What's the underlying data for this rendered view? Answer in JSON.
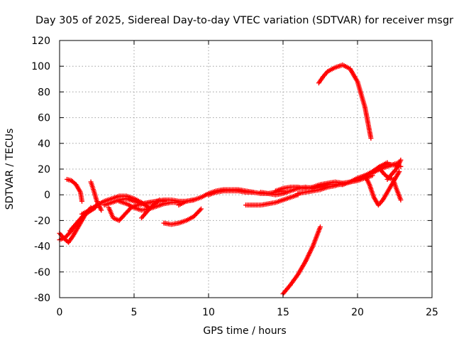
{
  "chart_data": {
    "type": "scatter",
    "title": "Day 305 of 2025, Sidereal Day-to-day VTEC variation (SDTVAR) for receiver msgr",
    "xlabel": "GPS time / hours",
    "ylabel": "SDTVAR / TECUs",
    "xlim": [
      0,
      25
    ],
    "ylim": [
      -80,
      120
    ],
    "xticks": [
      0,
      5,
      10,
      15,
      20,
      25
    ],
    "yticks": [
      -80,
      -60,
      -40,
      -20,
      0,
      20,
      40,
      60,
      80,
      100,
      120
    ],
    "grid": true,
    "marker": "plus",
    "color": "#ff0000",
    "series": [
      {
        "name": "s1",
        "x": [
          0.0,
          0.3,
          0.6,
          0.9,
          1.2,
          1.5,
          1.8,
          2.1
        ],
        "y": [
          -30,
          -34,
          -37,
          -32,
          -26,
          -20,
          -14,
          -10
        ]
      },
      {
        "name": "s2",
        "x": [
          0.0,
          0.4,
          0.8,
          1.2,
          1.6
        ],
        "y": [
          -35,
          -33,
          -28,
          -22,
          -16
        ]
      },
      {
        "name": "s3",
        "x": [
          0.5,
          0.8,
          1.1,
          1.4,
          1.5
        ],
        "y": [
          12,
          11,
          8,
          2,
          -5
        ]
      },
      {
        "name": "s4",
        "x": [
          0.7,
          1.0,
          1.3,
          1.6,
          2.0,
          2.4
        ],
        "y": [
          -28,
          -24,
          -20,
          -16,
          -13,
          -10
        ]
      },
      {
        "name": "s5",
        "x": [
          2.1,
          2.3,
          2.5,
          2.8
        ],
        "y": [
          10,
          3,
          -5,
          -12
        ]
      },
      {
        "name": "s6",
        "x": [
          1.5,
          2.0,
          2.5,
          3.0,
          3.5,
          4.0,
          4.5,
          5.0,
          5.5,
          6.0
        ],
        "y": [
          -15,
          -12,
          -8,
          -5,
          -3,
          -1,
          -1,
          -3,
          -6,
          -10
        ]
      },
      {
        "name": "s7",
        "x": [
          3.3,
          3.6,
          4.0,
          4.4,
          4.8,
          5.2,
          5.6,
          6.0,
          6.5,
          7.0
        ],
        "y": [
          -10,
          -18,
          -20,
          -15,
          -10,
          -8,
          -7,
          -6,
          -5,
          -5
        ]
      },
      {
        "name": "s8",
        "x": [
          3.0,
          3.5,
          4.0,
          4.5,
          5.0,
          5.5,
          6.0,
          6.5,
          7.0,
          7.5,
          8.0,
          8.5,
          9.0
        ],
        "y": [
          -8,
          -6,
          -4,
          -3,
          -5,
          -7,
          -6,
          -5,
          -4,
          -4,
          -5,
          -5,
          -4
        ]
      },
      {
        "name": "s9",
        "x": [
          4.0,
          4.5,
          5.0,
          5.5,
          6.0,
          6.5,
          7.0,
          7.5,
          8.0
        ],
        "y": [
          -5,
          -7,
          -10,
          -12,
          -11,
          -9,
          -7,
          -6,
          -6
        ]
      },
      {
        "name": "s10",
        "x": [
          5.5,
          5.8,
          6.1,
          6.4,
          6.7
        ],
        "y": [
          -18,
          -14,
          -10,
          -7,
          -4
        ]
      },
      {
        "name": "s11",
        "x": [
          7.0,
          7.5,
          8.0,
          8.5,
          9.0,
          9.5
        ],
        "y": [
          -22,
          -23,
          -22,
          -20,
          -17,
          -11
        ]
      },
      {
        "name": "s12",
        "x": [
          8.0,
          8.5,
          9.0,
          9.5,
          10.0,
          10.5,
          11.0,
          11.5,
          12.0,
          12.5,
          13.0,
          13.5,
          14.0,
          14.5,
          15.0
        ],
        "y": [
          -8,
          -5,
          -4,
          -2,
          1,
          3,
          4,
          4,
          4,
          3,
          2,
          1,
          1,
          2,
          3
        ]
      },
      {
        "name": "s13",
        "x": [
          10.0,
          10.5,
          11.0,
          11.5,
          12.0,
          12.5,
          13.0
        ],
        "y": [
          0,
          2,
          3,
          3,
          3,
          2,
          2
        ]
      },
      {
        "name": "s14",
        "x": [
          12.5,
          13.0,
          13.5,
          14.0,
          14.5,
          15.0,
          15.5,
          16.0
        ],
        "y": [
          -8,
          -8,
          -8,
          -7,
          -6,
          -4,
          -2,
          0
        ]
      },
      {
        "name": "s15",
        "x": [
          13.5,
          14.0,
          14.5,
          15.0,
          15.5,
          16.0,
          16.5,
          17.0,
          17.5,
          18.0
        ],
        "y": [
          2,
          1,
          0,
          1,
          3,
          5,
          6,
          5,
          6,
          8
        ]
      },
      {
        "name": "s16",
        "x": [
          14.5,
          15.0,
          15.5,
          16.0,
          16.5,
          17.0,
          17.5,
          18.0,
          18.5,
          19.0
        ],
        "y": [
          3,
          5,
          6,
          6,
          5,
          6,
          8,
          9,
          10,
          9
        ]
      },
      {
        "name": "s17",
        "x": [
          15.0,
          15.5,
          16.0,
          16.5,
          17.0,
          17.5
        ],
        "y": [
          -77,
          -70,
          -62,
          -52,
          -40,
          -25
        ]
      },
      {
        "name": "s18",
        "x": [
          16.0,
          16.5,
          17.0,
          17.5,
          18.0,
          18.5,
          19.0,
          19.5,
          20.0,
          20.5,
          21.0
        ],
        "y": [
          1,
          2,
          3,
          4,
          6,
          7,
          9,
          10,
          11,
          13,
          15
        ]
      },
      {
        "name": "s19",
        "x": [
          17.0,
          17.5,
          18.0,
          18.5,
          19.0,
          19.5,
          20.0,
          20.5,
          21.0,
          21.5,
          22.0
        ],
        "y": [
          5,
          7,
          8,
          8,
          8,
          10,
          12,
          15,
          18,
          22,
          25
        ]
      },
      {
        "name": "s20",
        "x": [
          17.4,
          17.7,
          18.0,
          18.5,
          19.0,
          19.5,
          20.0,
          20.5,
          20.9
        ],
        "y": [
          87,
          92,
          96,
          99,
          101,
          98,
          88,
          68,
          44
        ]
      },
      {
        "name": "s21",
        "x": [
          19.0,
          19.5,
          20.0,
          20.5,
          21.0,
          21.5,
          22.0,
          22.5,
          22.8
        ],
        "y": [
          8,
          10,
          13,
          15,
          17,
          20,
          22,
          24,
          25
        ]
      },
      {
        "name": "s22",
        "x": [
          20.5,
          20.8,
          21.1,
          21.4,
          21.7,
          22.0,
          22.4,
          22.8
        ],
        "y": [
          15,
          8,
          -2,
          -8,
          -4,
          2,
          10,
          18
        ]
      },
      {
        "name": "s23",
        "x": [
          21.0,
          21.5,
          22.0,
          22.5,
          22.9
        ],
        "y": [
          18,
          22,
          24,
          23,
          22
        ]
      },
      {
        "name": "s24",
        "x": [
          21.5,
          21.8,
          22.1,
          22.4,
          22.6,
          22.9
        ],
        "y": [
          20,
          16,
          13,
          12,
          5,
          -4
        ]
      },
      {
        "name": "s25",
        "x": [
          22.0,
          22.3,
          22.6,
          22.9
        ],
        "y": [
          12,
          16,
          20,
          27
        ]
      }
    ]
  }
}
